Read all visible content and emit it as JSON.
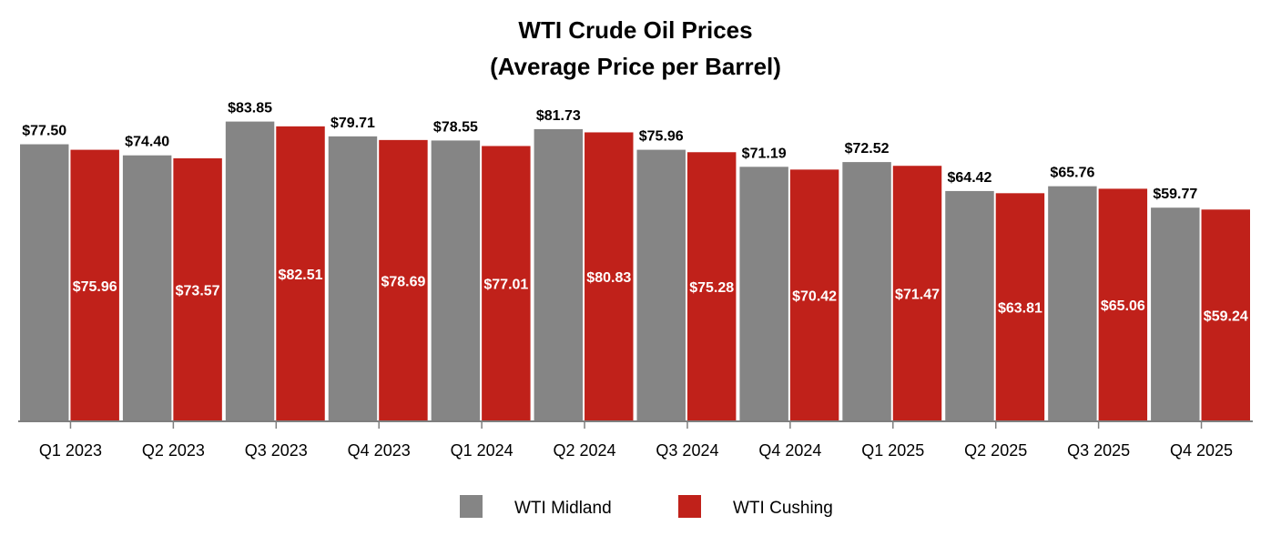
{
  "chart_data": {
    "type": "bar",
    "title": [
      "WTI Crude Oil Prices",
      "(Average Price per Barrel)"
    ],
    "xlabel": "",
    "ylabel": "",
    "ylim": [
      0,
      84
    ],
    "grid": false,
    "legend_position": "bottom",
    "categories": [
      "Q1 2023",
      "Q2 2023",
      "Q3 2023",
      "Q4 2023",
      "Q1 2024",
      "Q2 2024",
      "Q3 2024",
      "Q4 2024",
      "Q1 2025",
      "Q2 2025",
      "Q3 2025",
      "Q4 2025"
    ],
    "series": [
      {
        "name": "WTI Midland",
        "color": "#858585",
        "values": [
          77.5,
          74.4,
          83.85,
          79.71,
          78.55,
          81.73,
          75.96,
          71.19,
          72.52,
          64.42,
          65.76,
          59.77
        ],
        "labels": [
          "$77.50",
          "$74.40",
          "$83.85",
          "$79.71",
          "$78.55",
          "$81.73",
          "$75.96",
          "$71.19",
          "$72.52",
          "$64.42",
          "$65.76",
          "$59.77"
        ]
      },
      {
        "name": "WTI Cushing",
        "color": "#c0211a",
        "values": [
          75.96,
          73.57,
          82.51,
          78.69,
          77.01,
          80.83,
          75.28,
          70.42,
          71.47,
          63.81,
          65.06,
          59.24
        ],
        "labels": [
          "$75.96",
          "$73.57",
          "$82.51",
          "$78.69",
          "$77.01",
          "$80.83",
          "$75.28",
          "$70.42",
          "$71.47",
          "$63.81",
          "$65.06",
          "$59.24"
        ]
      }
    ]
  }
}
